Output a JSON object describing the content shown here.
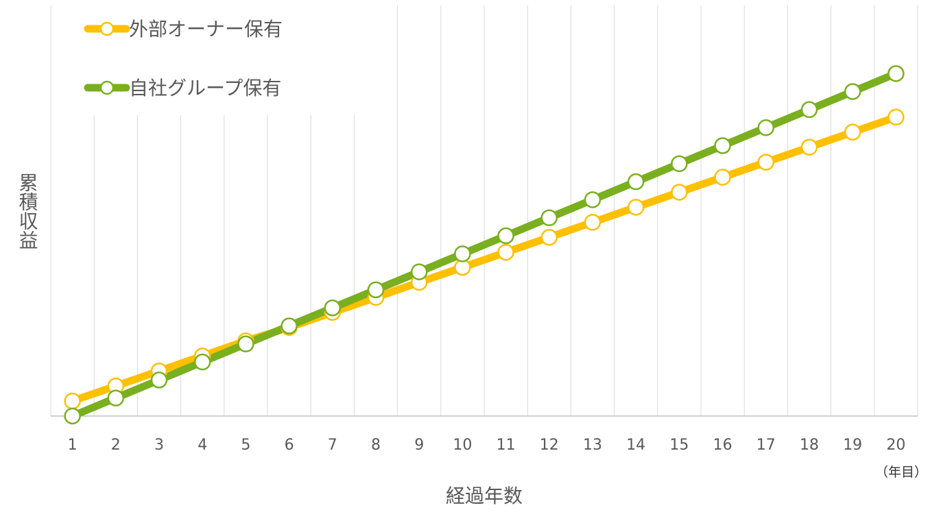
{
  "chart_data": {
    "type": "line",
    "title": "",
    "xlabel": "経過年数",
    "ylabel": "累積収益",
    "x_unit": "（年目）",
    "categories": [
      "1",
      "2",
      "3",
      "4",
      "5",
      "6",
      "7",
      "8",
      "9",
      "10",
      "11",
      "12",
      "13",
      "14",
      "15",
      "16",
      "17",
      "18",
      "19",
      "20"
    ],
    "series": [
      {
        "name": "外部オーナー保有",
        "color": "#FFC000",
        "values": [
          1.0,
          2.0,
          3.0,
          4.0,
          5.0,
          5.9,
          6.9,
          7.9,
          8.9,
          9.9,
          10.9,
          11.9,
          12.9,
          13.9,
          14.9,
          15.9,
          16.9,
          17.9,
          18.9,
          19.9
        ]
      },
      {
        "name": "自社グループ保有",
        "color": "#7AAF1F",
        "values": [
          0.0,
          1.2,
          2.4,
          3.6,
          4.8,
          6.0,
          7.2,
          8.4,
          9.6,
          10.8,
          12.0,
          13.2,
          14.4,
          15.6,
          16.8,
          18.0,
          19.2,
          20.4,
          21.6,
          22.8
        ]
      }
    ],
    "ylim": [
      0,
      23.5
    ],
    "grid": true,
    "legend_position": "top-left",
    "marker": "circle-white-fill"
  }
}
